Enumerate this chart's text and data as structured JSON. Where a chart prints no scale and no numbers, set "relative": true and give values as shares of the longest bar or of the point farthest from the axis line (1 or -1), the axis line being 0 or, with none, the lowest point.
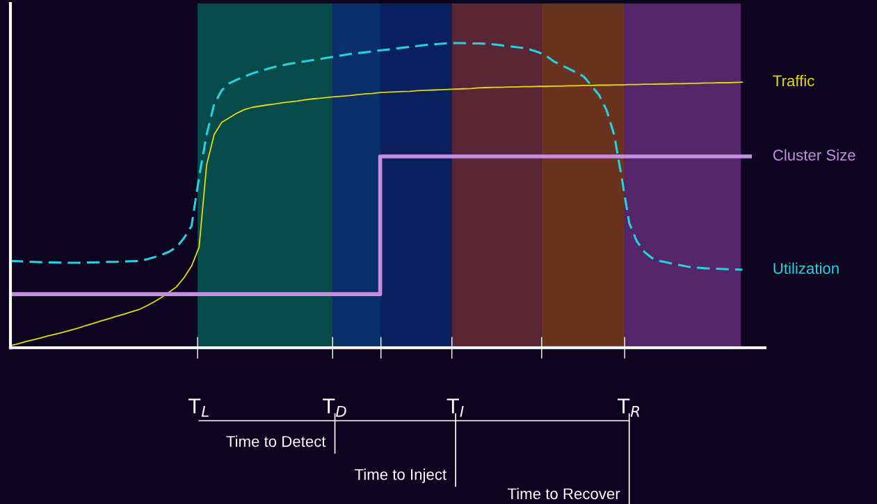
{
  "chart_data": {
    "type": "line",
    "relative": true,
    "legend": false,
    "grid": false,
    "categories": [
      null,
      null,
      null,
      null,
      null,
      null,
      null,
      null,
      null,
      null,
      null,
      null,
      null,
      null,
      null,
      null,
      null,
      null,
      null,
      null,
      null,
      null,
      null,
      null,
      null,
      "T$_{L}$",
      null,
      null,
      null,
      null,
      null,
      null,
      null,
      null,
      null,
      null,
      null,
      null,
      null,
      null,
      null,
      null,
      null,
      "T$_{D}$",
      null,
      null,
      null,
      null,
      null,
      null,
      null,
      null,
      null,
      null,
      null,
      null,
      null,
      null,
      null,
      "T$_{I}$",
      null,
      null,
      null,
      null,
      null,
      null,
      null,
      null,
      null,
      null,
      null,
      null,
      null,
      null,
      null,
      null,
      null,
      null,
      null,
      null,
      null,
      null,
      "T$_{R}$",
      null,
      null,
      null,
      null,
      null,
      null,
      null,
      null,
      null,
      null,
      null,
      null,
      null,
      null,
      null,
      null
    ],
    "series": [
      {
        "name": "Traffic",
        "color": "#e6dc00",
        "line_style": "solid",
        "values": [
          0.007,
          0.013,
          0.02,
          0.026,
          0.032,
          0.039,
          0.045,
          0.051,
          0.058,
          0.065,
          0.073,
          0.08,
          0.088,
          0.095,
          0.103,
          0.11,
          0.118,
          0.125,
          0.137,
          0.15,
          0.165,
          0.182,
          0.2,
          0.23,
          0.268,
          0.33,
          0.6,
          0.7,
          0.74,
          0.755,
          0.77,
          0.782,
          0.789,
          0.793,
          0.797,
          0.8,
          0.804,
          0.807,
          0.81,
          0.814,
          0.817,
          0.819,
          0.822,
          0.824,
          0.826,
          0.828,
          0.831,
          0.833,
          0.835,
          0.838,
          0.839,
          0.84,
          0.841,
          0.842,
          0.844,
          0.845,
          0.846,
          0.847,
          0.848,
          0.849,
          0.85,
          0.851,
          0.853,
          0.854,
          0.855,
          0.855,
          0.856,
          0.856,
          0.857,
          0.857,
          0.858,
          0.858,
          0.859,
          0.859,
          0.86,
          0.86,
          0.861,
          0.861,
          0.862,
          0.862,
          0.863,
          0.863,
          0.864,
          0.864,
          0.865,
          0.865,
          0.866,
          0.866,
          0.867,
          0.867,
          0.868,
          0.868,
          0.869,
          0.869,
          0.87,
          0.87,
          0.871,
          0.872,
          null
        ]
      },
      {
        "name": "Cluster Size",
        "color": "#c58ee0",
        "type": "step",
        "line_style": "solid",
        "values": [
          0.176,
          0.176,
          0.176,
          0.176,
          0.176,
          0.176,
          0.176,
          0.176,
          0.176,
          0.176,
          0.176,
          0.176,
          0.176,
          0.176,
          0.176,
          0.176,
          0.176,
          0.176,
          0.176,
          0.176,
          0.176,
          0.176,
          0.176,
          0.176,
          0.176,
          0.176,
          0.176,
          0.176,
          0.176,
          0.176,
          0.176,
          0.176,
          0.176,
          0.176,
          0.176,
          0.176,
          0.176,
          0.176,
          0.176,
          0.176,
          0.176,
          0.176,
          0.176,
          0.176,
          0.176,
          0.176,
          0.176,
          0.176,
          0.176,
          0.628,
          0.628,
          0.628,
          0.628,
          0.628,
          0.628,
          0.628,
          0.628,
          0.628,
          0.628,
          0.628,
          0.628,
          0.628,
          0.628,
          0.628,
          0.628,
          0.628,
          0.628,
          0.628,
          0.628,
          0.628,
          0.628,
          0.628,
          0.628,
          0.628,
          0.628,
          0.628,
          0.628,
          0.628,
          0.628,
          0.628,
          0.628,
          0.628,
          0.628,
          0.628,
          0.628,
          0.628,
          0.628,
          0.628,
          0.628,
          0.628,
          0.628,
          0.628,
          0.628,
          0.628,
          0.628,
          0.628,
          0.628,
          0.628,
          0.628
        ]
      },
      {
        "name": "Utilization",
        "color": "#22d3e0",
        "line_style": "dashed",
        "values": [
          0.285,
          0.284,
          0.283,
          0.282,
          0.281,
          0.28,
          0.28,
          0.279,
          0.279,
          0.279,
          0.28,
          0.28,
          0.281,
          0.282,
          0.282,
          0.283,
          0.284,
          0.285,
          0.29,
          0.297,
          0.305,
          0.315,
          0.33,
          0.36,
          0.4,
          0.56,
          0.7,
          0.8,
          0.845,
          0.868,
          0.88,
          0.89,
          0.9,
          0.908,
          0.915,
          0.922,
          0.927,
          0.932,
          0.936,
          0.94,
          0.944,
          0.948,
          0.952,
          0.956,
          0.96,
          0.964,
          0.967,
          0.97,
          0.973,
          0.976,
          0.979,
          0.982,
          0.985,
          0.988,
          0.991,
          0.994,
          0.996,
          0.998,
          1,
          1,
          1,
          0.999,
          0.999,
          0.998,
          0.996,
          0.993,
          0.99,
          0.987,
          0.984,
          0.978,
          0.97,
          0.958,
          0.94,
          0.928,
          0.916,
          0.903,
          0.89,
          0.86,
          0.83,
          0.78,
          0.7,
          0.56,
          0.41,
          0.35,
          0.315,
          0.295,
          0.285,
          0.28,
          0.275,
          0.27,
          0.265,
          0.263,
          0.261,
          0.26,
          0.259,
          0.258,
          0.257,
          0.256,
          null
        ]
      }
    ],
    "annotations": [
      "Time to Detect",
      "Time to Inject",
      "Time to Recover"
    ]
  }
}
